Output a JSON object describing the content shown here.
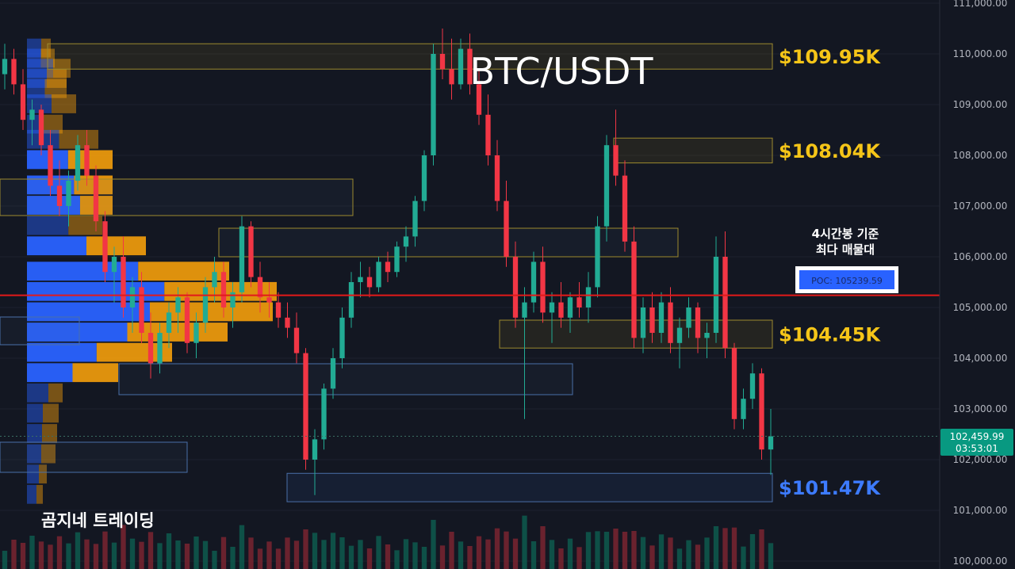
{
  "chart_data": {
    "type": "candlestick",
    "title": "BTC/USDT",
    "symbol": "BTC/USDT",
    "watermark": "곰지네 트레이딩",
    "y_axis": {
      "ylim": [
        99900,
        111100
      ],
      "ticks": [
        100000,
        101000,
        102000,
        103000,
        104000,
        105000,
        106000,
        107000,
        108000,
        109000,
        110000,
        111000
      ],
      "tick_labels": [
        "100,000.00",
        "101,000.00",
        "102,000.00",
        "103,000.00",
        "104,000.00",
        "105,000.00",
        "106,000.00",
        "107,000.00",
        "108,000.00",
        "109,000.00",
        "110,000.00",
        "111,000.00"
      ]
    },
    "last_price": {
      "value": 102459.99,
      "label": "102,459.99",
      "countdown": "03:53:01",
      "color": "#089981"
    },
    "poc": {
      "value": 105239.59,
      "label": "POC: 105239.59",
      "note_line1": "4시간봉 기준",
      "note_line2": "최다 매물대",
      "line_color": "#e31a1a"
    },
    "levels": [
      {
        "label": "$109.95K",
        "low": 109700,
        "high": 110200,
        "color": "#f5c518"
      },
      {
        "label": "$108.04K",
        "low": 107850,
        "high": 108340,
        "color": "#f5c518"
      },
      {
        "label": "$104.45K",
        "low": 104200,
        "high": 104750,
        "color": "#f5c518"
      },
      {
        "label": "$101.47K",
        "low": 101170,
        "high": 101730,
        "color": "#3d7bff"
      }
    ],
    "candles": [
      [
        109600,
        110200,
        109300,
        109900
      ],
      [
        109900,
        110100,
        109200,
        109400
      ],
      [
        109400,
        109700,
        108500,
        108700
      ],
      [
        108700,
        109100,
        108200,
        108900
      ],
      [
        108900,
        109000,
        108000,
        108200
      ],
      [
        108200,
        108500,
        107200,
        107400
      ],
      [
        107400,
        107900,
        106800,
        107000
      ],
      [
        107000,
        107700,
        106600,
        107500
      ],
      [
        107500,
        108400,
        107300,
        108200
      ],
      [
        108200,
        108500,
        107400,
        107600
      ],
      [
        107600,
        107800,
        106500,
        106700
      ],
      [
        106700,
        106900,
        105500,
        105700
      ],
      [
        105700,
        106200,
        105100,
        106000
      ],
      [
        106000,
        106400,
        104800,
        105000
      ],
      [
        105000,
        105600,
        104500,
        105400
      ],
      [
        105400,
        105700,
        104300,
        104500
      ],
      [
        104500,
        104900,
        103600,
        103900
      ],
      [
        103900,
        104700,
        103700,
        104500
      ],
      [
        104500,
        105100,
        104200,
        104900
      ],
      [
        104900,
        105400,
        104500,
        105200
      ],
      [
        105200,
        105300,
        104100,
        104300
      ],
      [
        104300,
        104900,
        104000,
        104700
      ],
      [
        104700,
        105600,
        104500,
        105400
      ],
      [
        105400,
        106000,
        105100,
        105700
      ],
      [
        105700,
        105900,
        104800,
        105000
      ],
      [
        105000,
        105500,
        104600,
        105300
      ],
      [
        105300,
        106800,
        105100,
        106600
      ],
      [
        106600,
        106700,
        105400,
        105600
      ],
      [
        105600,
        105900,
        104900,
        105200
      ],
      [
        105200,
        105500,
        104800,
        105100
      ],
      [
        105100,
        105300,
        104600,
        104800
      ],
      [
        104800,
        105100,
        104400,
        104600
      ],
      [
        104600,
        104900,
        103900,
        104100
      ],
      [
        104100,
        104200,
        101800,
        102000
      ],
      [
        102000,
        102600,
        101300,
        102400
      ],
      [
        102400,
        103500,
        102200,
        103400
      ],
      [
        103400,
        104200,
        103200,
        104000
      ],
      [
        104000,
        105000,
        103800,
        104800
      ],
      [
        104800,
        105700,
        104600,
        105500
      ],
      [
        105500,
        105900,
        105200,
        105600
      ],
      [
        105600,
        105800,
        105200,
        105400
      ],
      [
        105400,
        106000,
        105300,
        105900
      ],
      [
        105900,
        106100,
        105500,
        105700
      ],
      [
        105700,
        106300,
        105600,
        106200
      ],
      [
        106200,
        106600,
        105900,
        106400
      ],
      [
        106400,
        107200,
        106200,
        107100
      ],
      [
        107100,
        108100,
        106900,
        108000
      ],
      [
        108000,
        110200,
        107800,
        110000
      ],
      [
        110000,
        110500,
        109500,
        109700
      ],
      [
        109700,
        110300,
        109100,
        109400
      ],
      [
        109400,
        110300,
        109300,
        110100
      ],
      [
        110100,
        110400,
        109200,
        109400
      ],
      [
        109400,
        109700,
        108600,
        108800
      ],
      [
        108800,
        109200,
        107800,
        108000
      ],
      [
        108000,
        108300,
        106900,
        107100
      ],
      [
        107100,
        107500,
        105800,
        106000
      ],
      [
        106000,
        106300,
        104600,
        104800
      ],
      [
        104800,
        105400,
        102800,
        105100
      ],
      [
        105100,
        106100,
        104900,
        105900
      ],
      [
        105900,
        106200,
        104700,
        104900
      ],
      [
        104900,
        105300,
        104300,
        105100
      ],
      [
        105100,
        105500,
        104600,
        104800
      ],
      [
        104800,
        105300,
        104500,
        105200
      ],
      [
        105200,
        105500,
        104800,
        105000
      ],
      [
        105000,
        105700,
        104700,
        105400
      ],
      [
        105400,
        106800,
        105200,
        106600
      ],
      [
        106600,
        108400,
        106300,
        108200
      ],
      [
        108200,
        108900,
        107400,
        107600
      ],
      [
        107600,
        107900,
        106100,
        106300
      ],
      [
        106300,
        106600,
        104200,
        104400
      ],
      [
        104400,
        105200,
        104100,
        105000
      ],
      [
        105000,
        105300,
        104300,
        104500
      ],
      [
        104500,
        105300,
        104300,
        105100
      ],
      [
        105100,
        105400,
        104100,
        104300
      ],
      [
        104300,
        104800,
        103800,
        104600
      ],
      [
        104600,
        105200,
        104400,
        105000
      ],
      [
        105000,
        105100,
        104100,
        104400
      ],
      [
        104400,
        104700,
        104000,
        104500
      ],
      [
        104500,
        106400,
        104300,
        106000
      ],
      [
        106000,
        106500,
        104000,
        104200
      ],
      [
        104200,
        104300,
        102600,
        102800
      ],
      [
        102800,
        103400,
        102600,
        103200
      ],
      [
        103200,
        103900,
        103000,
        103700
      ],
      [
        103700,
        103800,
        102000,
        102200
      ],
      [
        102200,
        103000,
        101700,
        102460
      ]
    ],
    "volume_profile": [
      {
        "price": 110100,
        "total": 30,
        "share": 0.6
      },
      {
        "price": 109900,
        "total": 35,
        "share": 0.5
      },
      {
        "price": 109700,
        "total": 55,
        "share": 0.6
      },
      {
        "price": 109500,
        "total": 50,
        "share": 0.5
      },
      {
        "price": 109300,
        "total": 50,
        "share": 0.45
      },
      {
        "price": 109000,
        "total": 62,
        "share": 0.5
      },
      {
        "price": 108600,
        "total": 45,
        "share": 0.35
      },
      {
        "price": 108300,
        "total": 90,
        "share": 0.45
      },
      {
        "price": 107900,
        "total": 108,
        "share": 0.48
      },
      {
        "price": 107400,
        "total": 108,
        "share": 0.55
      },
      {
        "price": 107000,
        "total": 108,
        "share": 0.62
      },
      {
        "price": 106600,
        "total": 95,
        "share": 0.55
      },
      {
        "price": 106200,
        "total": 150,
        "share": 0.5
      },
      {
        "price": 105700,
        "total": 255,
        "share": 0.55
      },
      {
        "price": 105300,
        "total": 315,
        "share": 0.55
      },
      {
        "price": 104900,
        "total": 310,
        "share": 0.5
      },
      {
        "price": 104500,
        "total": 253,
        "share": 0.5
      },
      {
        "price": 104100,
        "total": 183,
        "share": 0.48
      },
      {
        "price": 103700,
        "total": 115,
        "share": 0.5
      },
      {
        "price": 103300,
        "total": 45,
        "share": 0.6
      },
      {
        "price": 102900,
        "total": 40,
        "share": 0.5
      },
      {
        "price": 102500,
        "total": 38,
        "share": 0.5
      },
      {
        "price": 102100,
        "total": 36,
        "share": 0.5
      },
      {
        "price": 101700,
        "total": 25,
        "share": 0.6
      },
      {
        "price": 101300,
        "total": 20,
        "share": 0.6
      }
    ]
  },
  "colors": {
    "background": "#131722",
    "up": "#22ab94",
    "down": "#f23645",
    "profile_buy": "#2962ff",
    "profile_sell": "#f59e0b",
    "level_yellow": "#f5c518",
    "level_blue": "#3d7bff"
  }
}
